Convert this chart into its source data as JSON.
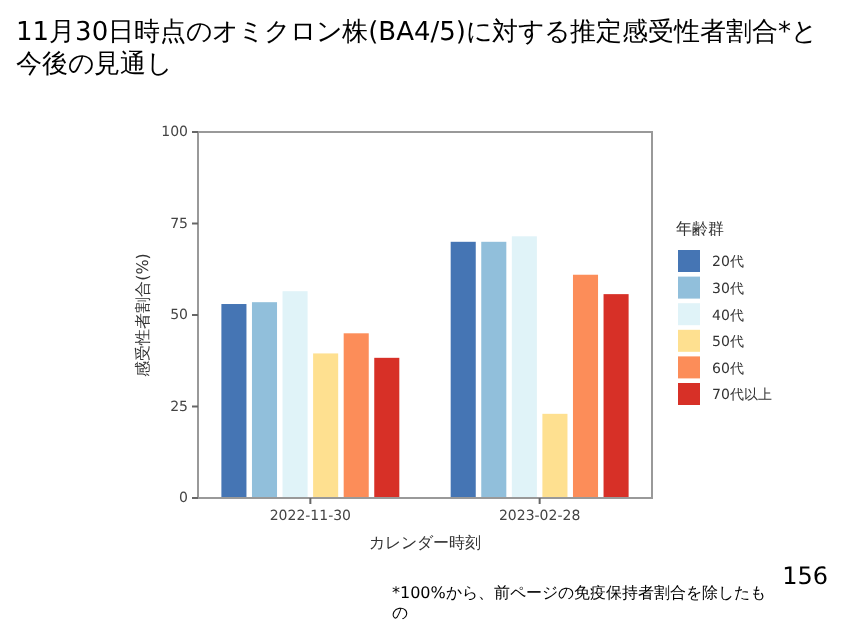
{
  "chart_data": {
    "type": "bar",
    "title": "11月30日時点のオミクロン株(BA4/5)に対する推定感受性者割合*と今後の見通し",
    "xlabel": "カレンダー時刻",
    "ylabel": "感受性者割合(%)",
    "legend_title": "年齢群",
    "categories": [
      "2022-11-30",
      "2023-02-28"
    ],
    "series": [
      {
        "name": "20代",
        "color": "#4575b4",
        "values": [
          53,
          70
        ]
      },
      {
        "name": "30代",
        "color": "#91bfdb",
        "values": [
          53.5,
          70
        ]
      },
      {
        "name": "40代",
        "color": "#e0f3f8",
        "values": [
          56.5,
          71.5
        ]
      },
      {
        "name": "50代",
        "color": "#fee090",
        "values": [
          39.5,
          23
        ]
      },
      {
        "name": "60代",
        "color": "#fc8d59",
        "values": [
          45,
          61
        ]
      },
      {
        "name": "70代以上",
        "color": "#d73027",
        "values": [
          38.3,
          55.7
        ]
      }
    ],
    "ylim": [
      0,
      100
    ],
    "yticks": [
      0,
      25,
      50,
      75,
      100
    ],
    "grid": false,
    "legend": "right",
    "annotations": [
      "*100%から、前ページの免疫保持者割合を除したもの",
      "156"
    ]
  }
}
